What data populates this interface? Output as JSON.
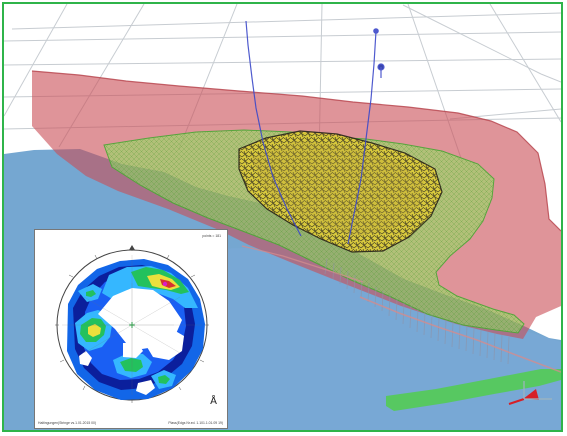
{
  "scene": {
    "colors": {
      "background": "#ffffff",
      "grid": "#9aa3ad",
      "terrain_blue": "#6ea2cf",
      "red_surface": "#c94d55",
      "green_grid": "#63d84e",
      "yellow_body": "#d9c62a",
      "borehole_line": "#3c49c9",
      "frame": "#2fb44a"
    }
  },
  "stereonet": {
    "header_text": "points = 181",
    "footer_left": "Haltingungen(Stringe vs.1.01.2015 00)",
    "footer_right": "Plass(Edgs Nr.ed. 1.101.1.01.09 19)",
    "north_symbol": "Å",
    "colors": {
      "dark_blue": "#0b1f9c",
      "blue": "#1266e8",
      "light_blue": "#35b7ff",
      "green": "#23c15d",
      "yellow": "#ebe03d",
      "red": "#d73131",
      "magenta": "#d81ec9"
    }
  }
}
